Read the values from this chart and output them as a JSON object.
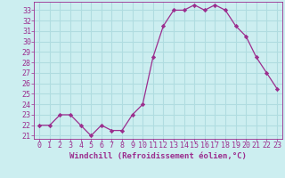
{
  "x": [
    0,
    1,
    2,
    3,
    4,
    5,
    6,
    7,
    8,
    9,
    10,
    11,
    12,
    13,
    14,
    15,
    16,
    17,
    18,
    19,
    20,
    21,
    22,
    23
  ],
  "y": [
    22,
    22,
    23,
    23,
    22,
    21,
    22,
    21.5,
    21.5,
    23,
    24,
    28.5,
    31.5,
    33,
    33,
    33.5,
    33,
    33.5,
    33,
    31.5,
    30.5,
    28.5,
    27,
    25.5
  ],
  "line_color": "#9b2d8e",
  "marker": "D",
  "marker_size": 2.2,
  "bg_color": "#cceef0",
  "grid_color": "#b0dce0",
  "xlabel": "Windchill (Refroidissement éolien,°C)",
  "xlabel_color": "#9b2d8e",
  "tick_color": "#9b2d8e",
  "ylim": [
    20.7,
    33.8
  ],
  "xlim": [
    -0.5,
    23.5
  ],
  "yticks": [
    21,
    22,
    23,
    24,
    25,
    26,
    27,
    28,
    29,
    30,
    31,
    32,
    33
  ],
  "xticks": [
    0,
    1,
    2,
    3,
    4,
    5,
    6,
    7,
    8,
    9,
    10,
    11,
    12,
    13,
    14,
    15,
    16,
    17,
    18,
    19,
    20,
    21,
    22,
    23
  ],
  "label_fontsize": 6.5,
  "tick_fontsize": 6.0
}
